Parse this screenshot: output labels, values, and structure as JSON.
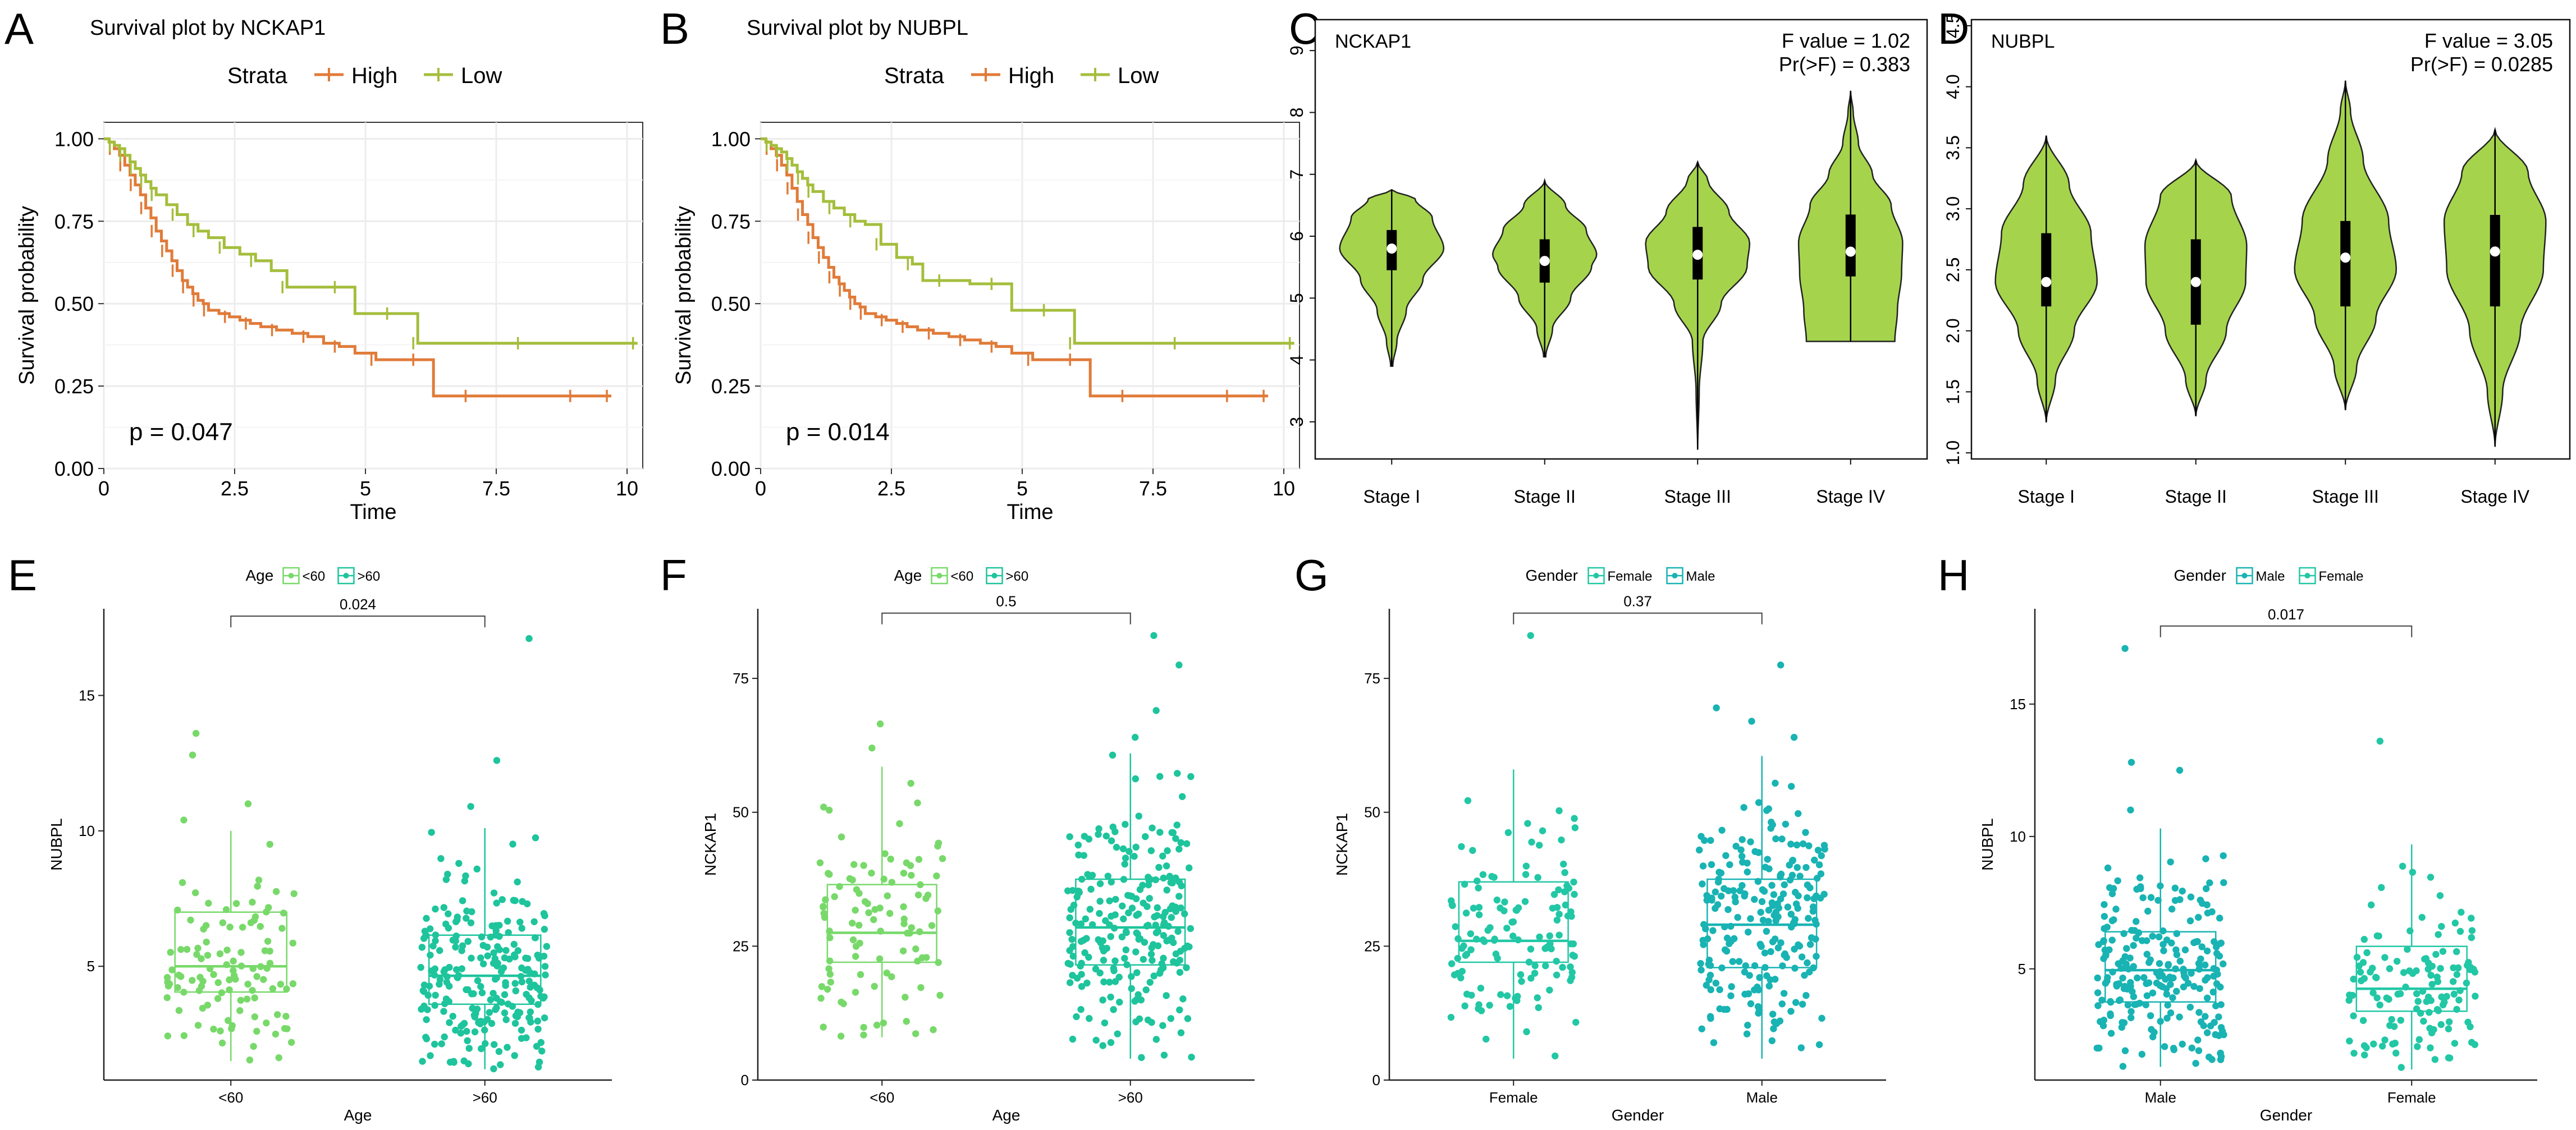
{
  "colors": {
    "high": "#E07B39",
    "low": "#A4BE3C",
    "violin_fill": "#A5D44C",
    "age_lt60": "#78D96A",
    "age_ge60": "#1EC49C",
    "female": "#22C7A5",
    "male": "#19B3B3",
    "grid": "#ECECEC"
  },
  "panel_labels": [
    "A",
    "B",
    "C",
    "D",
    "E",
    "F",
    "G",
    "H"
  ],
  "chart_data": [
    {
      "type": "line",
      "subtype": "kaplan-meier",
      "title": "Survival plot by NCKAP1",
      "xlabel": "Time",
      "ylabel": "Survival probability",
      "xlim": [
        0,
        10.3
      ],
      "ylim": [
        0,
        1.05
      ],
      "xticks": [
        "0",
        "2.5",
        "5",
        "7.5",
        "10"
      ],
      "yticks": [
        "0.00",
        "0.25",
        "0.50",
        "0.75",
        "1.00"
      ],
      "legend_title": "Strata",
      "annotation": "p = 0.047",
      "series": [
        {
          "name": "High",
          "x": [
            0,
            0.1,
            0.2,
            0.3,
            0.4,
            0.5,
            0.6,
            0.7,
            0.8,
            0.9,
            1.0,
            1.1,
            1.2,
            1.3,
            1.4,
            1.5,
            1.6,
            1.7,
            1.8,
            1.9,
            2.0,
            2.2,
            2.4,
            2.6,
            2.8,
            3.0,
            3.3,
            3.6,
            3.9,
            4.2,
            4.5,
            4.8,
            5.2,
            5.5,
            6.0,
            6.3,
            7.0,
            8.0,
            9.0,
            9.7
          ],
          "y": [
            1.0,
            0.99,
            0.97,
            0.95,
            0.92,
            0.89,
            0.86,
            0.83,
            0.79,
            0.76,
            0.72,
            0.69,
            0.66,
            0.63,
            0.6,
            0.57,
            0.55,
            0.53,
            0.51,
            0.5,
            0.48,
            0.47,
            0.46,
            0.45,
            0.44,
            0.43,
            0.42,
            0.41,
            0.4,
            0.38,
            0.37,
            0.35,
            0.33,
            0.33,
            0.33,
            0.22,
            0.22,
            0.22,
            0.22,
            0.22
          ]
        },
        {
          "name": "Low",
          "x": [
            0,
            0.1,
            0.2,
            0.3,
            0.4,
            0.5,
            0.6,
            0.7,
            0.8,
            0.9,
            1.0,
            1.2,
            1.4,
            1.6,
            1.8,
            2.0,
            2.3,
            2.6,
            2.9,
            3.2,
            3.5,
            4.0,
            4.5,
            4.8,
            5.5,
            5.8,
            6.0,
            7.0,
            8.0,
            9.0,
            10.2
          ],
          "y": [
            1.0,
            0.99,
            0.98,
            0.97,
            0.95,
            0.93,
            0.91,
            0.89,
            0.87,
            0.85,
            0.83,
            0.8,
            0.77,
            0.74,
            0.72,
            0.7,
            0.67,
            0.65,
            0.63,
            0.6,
            0.55,
            0.55,
            0.55,
            0.47,
            0.47,
            0.47,
            0.38,
            0.38,
            0.38,
            0.38,
            0.38
          ]
        }
      ]
    },
    {
      "type": "line",
      "subtype": "kaplan-meier",
      "title": "Survival plot by NUBPL",
      "xlabel": "Time",
      "ylabel": "Survival probability",
      "xlim": [
        0,
        10.3
      ],
      "ylim": [
        0,
        1.05
      ],
      "xticks": [
        "0",
        "2.5",
        "5",
        "7.5",
        "10"
      ],
      "yticks": [
        "0.00",
        "0.25",
        "0.50",
        "0.75",
        "1.00"
      ],
      "legend_title": "Strata",
      "annotation": "p = 0.014",
      "series": [
        {
          "name": "High",
          "x": [
            0,
            0.1,
            0.2,
            0.3,
            0.4,
            0.5,
            0.6,
            0.7,
            0.8,
            0.9,
            1.0,
            1.1,
            1.2,
            1.3,
            1.4,
            1.5,
            1.6,
            1.7,
            1.8,
            1.9,
            2.0,
            2.2,
            2.4,
            2.6,
            2.8,
            3.0,
            3.3,
            3.6,
            3.9,
            4.2,
            4.5,
            4.8,
            5.2,
            5.5,
            6.0,
            6.3,
            7.0,
            8.0,
            9.0,
            9.7
          ],
          "y": [
            1.0,
            0.99,
            0.97,
            0.95,
            0.92,
            0.89,
            0.85,
            0.81,
            0.77,
            0.74,
            0.7,
            0.67,
            0.64,
            0.61,
            0.58,
            0.56,
            0.54,
            0.52,
            0.5,
            0.49,
            0.47,
            0.46,
            0.45,
            0.44,
            0.43,
            0.42,
            0.41,
            0.4,
            0.39,
            0.38,
            0.37,
            0.35,
            0.33,
            0.33,
            0.33,
            0.22,
            0.22,
            0.22,
            0.22,
            0.22
          ]
        },
        {
          "name": "Low",
          "x": [
            0,
            0.1,
            0.2,
            0.3,
            0.4,
            0.5,
            0.6,
            0.7,
            0.8,
            0.9,
            1.0,
            1.2,
            1.4,
            1.6,
            1.8,
            2.0,
            2.3,
            2.6,
            2.9,
            3.1,
            3.5,
            4.0,
            4.5,
            4.8,
            5.5,
            5.8,
            6.0,
            7.0,
            8.0,
            9.0,
            10.2
          ],
          "y": [
            1.0,
            0.99,
            0.98,
            0.97,
            0.96,
            0.94,
            0.92,
            0.9,
            0.88,
            0.86,
            0.84,
            0.81,
            0.79,
            0.77,
            0.75,
            0.74,
            0.68,
            0.64,
            0.62,
            0.57,
            0.57,
            0.56,
            0.56,
            0.48,
            0.48,
            0.48,
            0.38,
            0.38,
            0.38,
            0.38,
            0.38
          ]
        }
      ]
    },
    {
      "type": "violin",
      "title": "NCKAP1",
      "categories": [
        "Stage I",
        "Stage II",
        "Stage III",
        "Stage IV"
      ],
      "ylim": [
        2.4,
        9.5
      ],
      "yticks": [
        "3",
        "4",
        "5",
        "6",
        "7",
        "8",
        "9"
      ],
      "ytick_values": [
        3,
        4,
        5,
        6,
        7,
        8,
        9
      ],
      "annotation_lines": [
        "F value = 1.02",
        "Pr(>F) = 0.383"
      ],
      "stats": [
        {
          "min": 3.9,
          "q1": 5.45,
          "median": 5.8,
          "q3": 6.1,
          "max": 6.75,
          "w": [
            [
              3.9,
              0.02
            ],
            [
              4.3,
              0.1
            ],
            [
              4.8,
              0.28
            ],
            [
              5.3,
              0.6
            ],
            [
              5.8,
              1.0
            ],
            [
              6.3,
              0.78
            ],
            [
              6.6,
              0.45
            ],
            [
              6.75,
              0.0
            ]
          ]
        },
        {
          "min": 4.05,
          "q1": 5.25,
          "median": 5.6,
          "q3": 5.95,
          "max": 6.9,
          "w": [
            [
              4.05,
              0.02
            ],
            [
              4.5,
              0.15
            ],
            [
              5.0,
              0.5
            ],
            [
              5.5,
              0.9
            ],
            [
              5.7,
              1.0
            ],
            [
              6.1,
              0.8
            ],
            [
              6.5,
              0.4
            ],
            [
              6.9,
              0.0
            ]
          ]
        },
        {
          "min": 2.55,
          "q1": 5.3,
          "median": 5.7,
          "q3": 6.15,
          "max": 7.2,
          "w": [
            [
              2.55,
              0.0
            ],
            [
              3.5,
              0.03
            ],
            [
              4.3,
              0.1
            ],
            [
              4.9,
              0.45
            ],
            [
              5.5,
              0.95
            ],
            [
              5.9,
              1.0
            ],
            [
              6.4,
              0.6
            ],
            [
              6.9,
              0.2
            ],
            [
              7.2,
              0.0
            ]
          ]
        },
        {
          "min": 4.3,
          "q1": 5.35,
          "median": 5.75,
          "q3": 6.35,
          "max": 8.35,
          "w": [
            [
              4.3,
              0.85
            ],
            [
              4.8,
              0.9
            ],
            [
              5.4,
              0.98
            ],
            [
              5.9,
              1.0
            ],
            [
              6.5,
              0.78
            ],
            [
              7.0,
              0.42
            ],
            [
              7.5,
              0.15
            ],
            [
              8.0,
              0.05
            ],
            [
              8.35,
              0.0
            ]
          ]
        }
      ]
    },
    {
      "type": "violin",
      "title": "NUBPL",
      "categories": [
        "Stage I",
        "Stage II",
        "Stage III",
        "Stage IV"
      ],
      "ylim": [
        0.95,
        4.55
      ],
      "yticks": [
        "1.0",
        "1.5",
        "2.0",
        "2.5",
        "3.0",
        "3.5",
        "4.0",
        "4.5"
      ],
      "ytick_values": [
        1.0,
        1.5,
        2.0,
        2.5,
        3.0,
        3.5,
        4.0,
        4.5
      ],
      "annotation_lines": [
        "F value = 3.05",
        "Pr(>F) = 0.0285"
      ],
      "stats": [
        {
          "min": 1.25,
          "q1": 2.2,
          "median": 2.4,
          "q3": 2.8,
          "max": 3.6,
          "w": [
            [
              1.25,
              0.0
            ],
            [
              1.6,
              0.18
            ],
            [
              2.0,
              0.55
            ],
            [
              2.4,
              1.0
            ],
            [
              2.8,
              0.88
            ],
            [
              3.2,
              0.45
            ],
            [
              3.6,
              0.0
            ]
          ]
        },
        {
          "min": 1.3,
          "q1": 2.05,
          "median": 2.4,
          "q3": 2.75,
          "max": 3.4,
          "w": [
            [
              1.3,
              0.0
            ],
            [
              1.6,
              0.2
            ],
            [
              2.0,
              0.6
            ],
            [
              2.4,
              0.98
            ],
            [
              2.7,
              1.0
            ],
            [
              3.1,
              0.7
            ],
            [
              3.4,
              0.0
            ]
          ]
        },
        {
          "min": 1.35,
          "q1": 2.2,
          "median": 2.6,
          "q3": 2.9,
          "max": 4.05,
          "w": [
            [
              1.35,
              0.0
            ],
            [
              1.7,
              0.22
            ],
            [
              2.1,
              0.6
            ],
            [
              2.5,
              1.0
            ],
            [
              2.9,
              0.85
            ],
            [
              3.4,
              0.35
            ],
            [
              3.8,
              0.1
            ],
            [
              4.05,
              0.0
            ]
          ]
        },
        {
          "min": 1.05,
          "q1": 2.2,
          "median": 2.65,
          "q3": 2.95,
          "max": 3.65,
          "w": [
            [
              1.05,
              0.0
            ],
            [
              1.5,
              0.15
            ],
            [
              2.0,
              0.5
            ],
            [
              2.5,
              0.95
            ],
            [
              2.9,
              1.0
            ],
            [
              3.3,
              0.65
            ],
            [
              3.65,
              0.0
            ]
          ]
        }
      ]
    },
    {
      "type": "box",
      "ylabel": "NUBPL",
      "xlabel": "Age",
      "legend_title": "Age",
      "legend": [
        "<60",
        ">60"
      ],
      "categories": [
        "<60",
        ">60"
      ],
      "ylim": [
        0.8,
        18.2
      ],
      "yticks": [
        "5",
        "10",
        "15"
      ],
      "ytick_values": [
        5,
        10,
        15
      ],
      "pvalue": "0.024",
      "groups": [
        {
          "name": "<60",
          "color_key": "age_lt60",
          "min": 1.5,
          "q1": 4.05,
          "median": 5.0,
          "q3": 7.0,
          "max": 10.0,
          "n": 110,
          "outliers": [
            10.4,
            11.0,
            12.8,
            13.6
          ]
        },
        {
          "name": ">60",
          "color_key": "age_ge60",
          "min": 1.2,
          "q1": 3.6,
          "median": 4.65,
          "q3": 6.15,
          "max": 10.1,
          "n": 240,
          "outliers": [
            10.9,
            12.6,
            17.1
          ]
        }
      ]
    },
    {
      "type": "box",
      "ylabel": "NCKAP1",
      "xlabel": "Age",
      "legend_title": "Age",
      "legend": [
        "<60",
        ">60"
      ],
      "categories": [
        "<60",
        ">60"
      ],
      "ylim": [
        0,
        88
      ],
      "yticks": [
        "0",
        "25",
        "50",
        "75"
      ],
      "ytick_values": [
        0,
        25,
        50,
        75
      ],
      "pvalue": "0.5",
      "groups": [
        {
          "name": "<60",
          "color_key": "age_lt60",
          "min": 8,
          "q1": 22,
          "median": 27.5,
          "q3": 36.5,
          "max": 58.5,
          "n": 100,
          "outliers": [
            62,
            66.5
          ]
        },
        {
          "name": ">60",
          "color_key": "age_ge60",
          "min": 4,
          "q1": 21.5,
          "median": 28.5,
          "q3": 37.5,
          "max": 61,
          "n": 240,
          "outliers": [
            64,
            69,
            77.5,
            83
          ]
        }
      ]
    },
    {
      "type": "box",
      "ylabel": "NCKAP1",
      "xlabel": "Gender",
      "legend_title": "Gender",
      "legend": [
        "Female",
        "Male"
      ],
      "categories": [
        "Female",
        "Male"
      ],
      "ylim": [
        0,
        88
      ],
      "yticks": [
        "0",
        "25",
        "50",
        "75"
      ],
      "ytick_values": [
        0,
        25,
        50,
        75
      ],
      "pvalue": "0.37",
      "groups": [
        {
          "name": "Female",
          "color_key": "female",
          "min": 4,
          "q1": 22,
          "median": 26,
          "q3": 37,
          "max": 58,
          "n": 130,
          "outliers": [
            83
          ]
        },
        {
          "name": "Male",
          "color_key": "male",
          "min": 4,
          "q1": 21,
          "median": 29,
          "q3": 37.5,
          "max": 60.5,
          "n": 230,
          "outliers": [
            64,
            67,
            69.5,
            77.5
          ]
        }
      ]
    },
    {
      "type": "box",
      "ylabel": "NUBPL",
      "xlabel": "Gender",
      "legend_title": "Gender",
      "legend": [
        "Male",
        "Female"
      ],
      "categories": [
        "Male",
        "Female"
      ],
      "ylim": [
        0.8,
        18.6
      ],
      "yticks": [
        "5",
        "10",
        "15"
      ],
      "ytick_values": [
        5,
        10,
        15
      ],
      "pvalue": "0.017",
      "groups": [
        {
          "name": "Male",
          "color_key": "male",
          "min": 1.3,
          "q1": 3.75,
          "median": 4.95,
          "q3": 6.4,
          "max": 10.3,
          "n": 230,
          "outliers": [
            11.0,
            12.5,
            12.8,
            17.1
          ]
        },
        {
          "name": "Female",
          "color_key": "female",
          "min": 1.2,
          "q1": 3.4,
          "median": 4.25,
          "q3": 5.85,
          "max": 9.7,
          "n": 130,
          "outliers": [
            13.6
          ]
        }
      ]
    }
  ]
}
